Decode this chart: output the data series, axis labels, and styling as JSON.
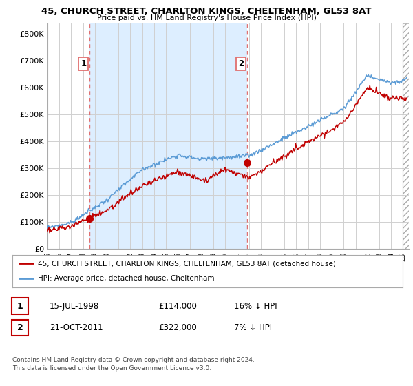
{
  "title_line1": "45, CHURCH STREET, CHARLTON KINGS, CHELTENHAM, GL53 8AT",
  "title_line2": "Price paid vs. HM Land Registry's House Price Index (HPI)",
  "ylabel_ticks": [
    "£0",
    "£100K",
    "£200K",
    "£300K",
    "£400K",
    "£500K",
    "£600K",
    "£700K",
    "£800K"
  ],
  "ytick_values": [
    0,
    100000,
    200000,
    300000,
    400000,
    500000,
    600000,
    700000,
    800000
  ],
  "ylim": [
    0,
    840000
  ],
  "xlim_start": 1995.0,
  "xlim_end": 2025.5,
  "sale1_x": 1998.54,
  "sale1_y": 114000,
  "sale2_x": 2011.83,
  "sale2_y": 322000,
  "legend_line1": "45, CHURCH STREET, CHARLTON KINGS, CHELTENHAM, GL53 8AT (detached house)",
  "legend_line2": "HPI: Average price, detached house, Cheltenham",
  "table_row1": [
    "1",
    "15-JUL-1998",
    "£114,000",
    "16% ↓ HPI"
  ],
  "table_row2": [
    "2",
    "21-OCT-2011",
    "£322,000",
    "7% ↓ HPI"
  ],
  "footnote": "Contains HM Land Registry data © Crown copyright and database right 2024.\nThis data is licensed under the Open Government Licence v3.0.",
  "hpi_color": "#5b9bd5",
  "sold_color": "#c00000",
  "grid_color": "#d0d0d0",
  "shade_color": "#ddeeff",
  "background_color": "#ffffff",
  "dashed_color": "#e07070"
}
